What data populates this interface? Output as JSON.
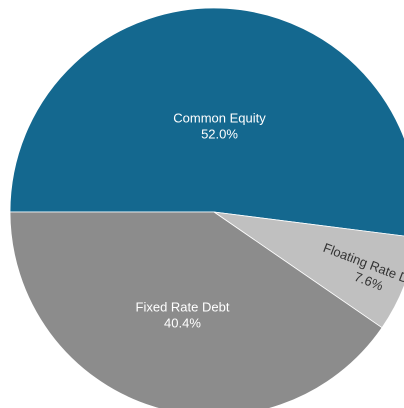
{
  "chart_data": {
    "type": "pie",
    "slices": [
      {
        "label": "Common Equity",
        "value": 52.0,
        "value_label": "52.0%",
        "color": "#14688f",
        "label_color": "#ffffff"
      },
      {
        "label": "Floating Rate Debt",
        "value": 7.6,
        "value_label": "7.6%",
        "color": "#c0c0c0",
        "label_color": "#333333"
      },
      {
        "label": "Fixed Rate Debt",
        "value": 40.4,
        "value_label": "40.4%",
        "color": "#8c8c8c",
        "label_color": "#ffffff"
      }
    ],
    "start_angle_deg": 180,
    "direction": "clockwise",
    "legend": "none"
  }
}
